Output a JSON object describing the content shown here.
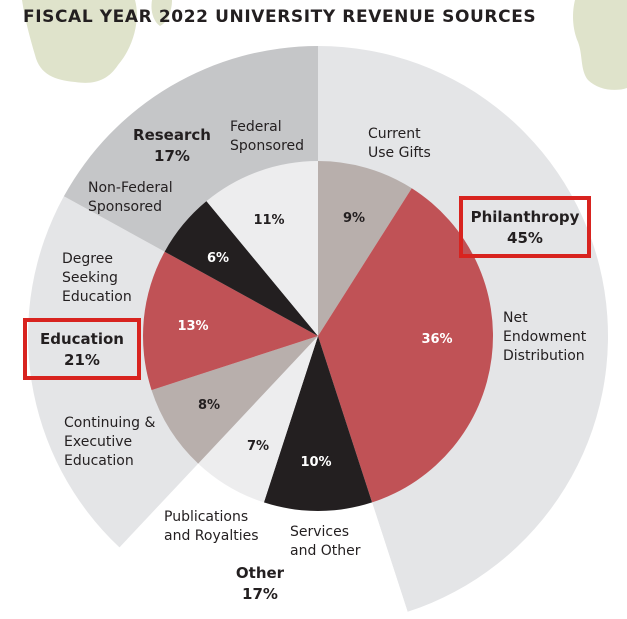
{
  "chart_data": {
    "type": "pie",
    "subtype": "nested-donut",
    "title": "FISCAL YEAR 2022 UNIVERSITY REVENUE SOURCES",
    "unit": "%",
    "groups": [
      {
        "name": "Philanthropy",
        "value": 45,
        "value_label": "45%",
        "highlighted": true,
        "ring_color": "#e4e5e7",
        "children": [
          {
            "name": "Current Use Gifts",
            "lines": [
              "Current",
              "Use Gifts"
            ],
            "value": 9,
            "value_label": "9%",
            "color": "#b8afac",
            "text_color": "#231f20"
          },
          {
            "name": "Net Endowment Distribution",
            "lines": [
              "Net",
              "Endowment",
              "Distribution"
            ],
            "value": 36,
            "value_label": "36%",
            "color": "#c05256",
            "text_color": "#ffffff"
          }
        ]
      },
      {
        "name": "Other",
        "value": 17,
        "value_label": "17%",
        "highlighted": false,
        "ring_color": "#ffffff",
        "children": [
          {
            "name": "Services and Other",
            "lines": [
              "Services",
              "and Other"
            ],
            "value": 10,
            "value_label": "10%",
            "color": "#231f20",
            "text_color": "#ffffff"
          },
          {
            "name": "Publications and Royalties",
            "lines": [
              "Publications",
              "and Royalties"
            ],
            "value": 7,
            "value_label": "7%",
            "color": "#ededee",
            "text_color": "#231f20"
          }
        ]
      },
      {
        "name": "Education",
        "value": 21,
        "value_label": "21%",
        "highlighted": true,
        "ring_color": "#e4e5e7",
        "children": [
          {
            "name": "Continuing & Executive Education",
            "lines": [
              "Continuing &",
              "Executive",
              "Education"
            ],
            "value": 8,
            "value_label": "8%",
            "color": "#b8afac",
            "text_color": "#231f20"
          },
          {
            "name": "Degree Seeking Education",
            "lines": [
              "Degree",
              "Seeking",
              "Education"
            ],
            "value": 13,
            "value_label": "13%",
            "color": "#c05256",
            "text_color": "#ffffff"
          }
        ]
      },
      {
        "name": "Research",
        "value": 17,
        "value_label": "17%",
        "highlighted": false,
        "ring_color": "#c5c6c8",
        "children": [
          {
            "name": "Non-Federal Sponsored",
            "lines": [
              "Non-Federal",
              "Sponsored"
            ],
            "value": 6,
            "value_label": "6%",
            "color": "#231f20",
            "text_color": "#ffffff"
          },
          {
            "name": "Federal Sponsored",
            "lines": [
              "Federal",
              "Sponsored"
            ],
            "value": 11,
            "value_label": "11%",
            "color": "#ededee",
            "text_color": "#231f20"
          }
        ]
      }
    ],
    "highlight_color": "#d8231f",
    "decoration_color": "#dfe3cb",
    "text_color": "#231f20"
  }
}
